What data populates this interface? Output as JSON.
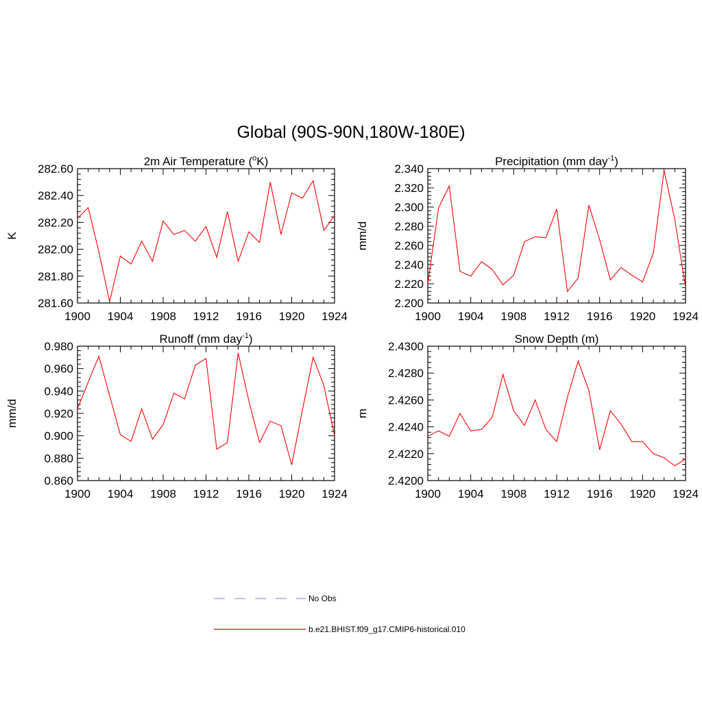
{
  "figure": {
    "title": "Global (90S-90N,180W-180E)",
    "colors": {
      "model": "#ff0000",
      "obs": "#9999ff",
      "axis": "#000000"
    }
  },
  "legend": [
    {
      "label": "No Obs",
      "style": "dashed",
      "color": "#9999ff"
    },
    {
      "label": "b.e21.BHIST.f09_g17.CMIP6-historical.010",
      "style": "solid",
      "color": "#ff0000"
    }
  ],
  "chart_data": [
    {
      "type": "line",
      "title": "2m Air Temperature (",
      "title_sup": "o",
      "title_after": "K)",
      "xlabel": "",
      "ylabel": "K",
      "xlim": [
        1900,
        1924
      ],
      "ylim": [
        281.6,
        282.6
      ],
      "xticks": [
        "1900",
        "1904",
        "1908",
        "1912",
        "1916",
        "1920",
        "1924"
      ],
      "yticks": [
        "281.60",
        "281.80",
        "282.00",
        "282.20",
        "282.40",
        "282.60"
      ],
      "grid": false,
      "x": [
        1900,
        1901,
        1902,
        1903,
        1904,
        1905,
        1906,
        1907,
        1908,
        1909,
        1910,
        1911,
        1912,
        1913,
        1914,
        1915,
        1916,
        1917,
        1918,
        1919,
        1920,
        1921,
        1922,
        1923,
        1924
      ],
      "series": [
        {
          "name": "b.e21.BHIST.f09_g17.CMIP6-historical.010",
          "values": [
            282.23,
            282.31,
            281.98,
            281.61,
            281.95,
            281.89,
            282.06,
            281.91,
            282.21,
            282.11,
            282.14,
            282.06,
            282.17,
            281.94,
            282.28,
            281.91,
            282.13,
            282.05,
            282.5,
            282.11,
            282.42,
            282.38,
            282.51,
            282.14,
            282.25
          ]
        }
      ]
    },
    {
      "type": "line",
      "title": "Precipitation (mm day",
      "title_sup": "-1",
      "title_after": ")",
      "xlabel": "",
      "ylabel": "mm/d",
      "xlim": [
        1900,
        1924
      ],
      "ylim": [
        2.2,
        2.34
      ],
      "xticks": [
        "1900",
        "1904",
        "1908",
        "1912",
        "1916",
        "1920",
        "1924"
      ],
      "yticks": [
        "2.200",
        "2.220",
        "2.240",
        "2.260",
        "2.280",
        "2.300",
        "2.320",
        "2.340"
      ],
      "grid": false,
      "x": [
        1900,
        1901,
        1902,
        1903,
        1904,
        1905,
        1906,
        1907,
        1908,
        1909,
        1910,
        1911,
        1912,
        1913,
        1914,
        1915,
        1916,
        1917,
        1918,
        1919,
        1920,
        1921,
        1922,
        1923,
        1924
      ],
      "series": [
        {
          "name": "b.e21.BHIST.f09_g17.CMIP6-historical.010",
          "values": [
            2.22,
            2.299,
            2.322,
            2.233,
            2.228,
            2.243,
            2.235,
            2.219,
            2.229,
            2.264,
            2.269,
            2.268,
            2.298,
            2.212,
            2.226,
            2.302,
            2.266,
            2.224,
            2.237,
            2.229,
            2.222,
            2.252,
            2.338,
            2.287,
            2.216
          ]
        }
      ]
    },
    {
      "type": "line",
      "title": "Runoff (mm day",
      "title_sup": "-1",
      "title_after": ")",
      "xlabel": "",
      "ylabel": "mm/d",
      "xlim": [
        1900,
        1924
      ],
      "ylim": [
        0.86,
        0.98
      ],
      "xticks": [
        "1900",
        "1904",
        "1908",
        "1912",
        "1916",
        "1920",
        "1924"
      ],
      "yticks": [
        "0.860",
        "0.880",
        "0.900",
        "0.920",
        "0.940",
        "0.960",
        "0.980"
      ],
      "grid": false,
      "x": [
        1900,
        1901,
        1902,
        1903,
        1904,
        1905,
        1906,
        1907,
        1908,
        1909,
        1910,
        1911,
        1912,
        1913,
        1914,
        1915,
        1916,
        1917,
        1918,
        1919,
        1920,
        1921,
        1922,
        1923,
        1924
      ],
      "series": [
        {
          "name": "b.e21.BHIST.f09_g17.CMIP6-historical.010",
          "values": [
            0.924,
            0.948,
            0.971,
            0.936,
            0.901,
            0.895,
            0.924,
            0.897,
            0.91,
            0.938,
            0.933,
            0.963,
            0.969,
            0.888,
            0.894,
            0.974,
            0.931,
            0.894,
            0.913,
            0.909,
            0.874,
            0.923,
            0.97,
            0.945,
            0.9
          ]
        }
      ]
    },
    {
      "type": "line",
      "title": "Snow Depth (m)",
      "title_sup": "",
      "title_after": "",
      "xlabel": "",
      "ylabel": "m",
      "xlim": [
        1900,
        1924
      ],
      "ylim": [
        2.42,
        2.43
      ],
      "xticks": [
        "1900",
        "1904",
        "1908",
        "1912",
        "1916",
        "1920",
        "1924"
      ],
      "yticks": [
        "2.4200",
        "2.4220",
        "2.4240",
        "2.4260",
        "2.4280",
        "2.4300"
      ],
      "grid": false,
      "x": [
        1900,
        1901,
        1902,
        1903,
        1904,
        1905,
        1906,
        1907,
        1908,
        1909,
        1910,
        1911,
        1912,
        1913,
        1914,
        1915,
        1916,
        1917,
        1918,
        1919,
        1920,
        1921,
        1922,
        1923,
        1924
      ],
      "series": [
        {
          "name": "b.e21.BHIST.f09_g17.CMIP6-historical.010",
          "values": [
            2.4233,
            2.4237,
            2.4233,
            2.425,
            2.4237,
            2.4238,
            2.4247,
            2.4279,
            2.4252,
            2.4241,
            2.426,
            2.4238,
            2.4229,
            2.4262,
            2.4289,
            2.4267,
            2.4223,
            2.4252,
            2.4242,
            2.4229,
            2.4229,
            2.422,
            2.4217,
            2.4211,
            2.4216
          ]
        }
      ]
    }
  ]
}
